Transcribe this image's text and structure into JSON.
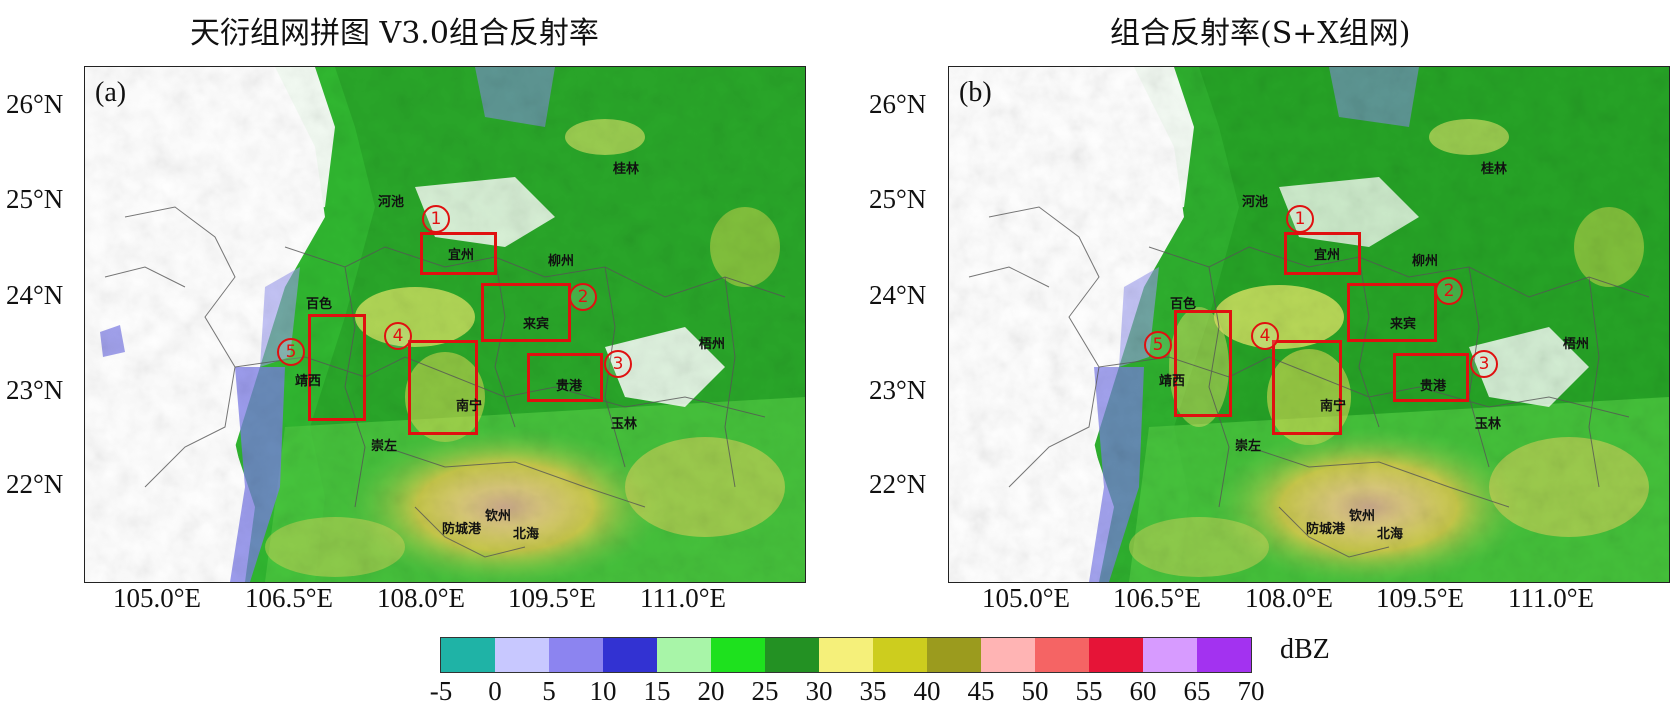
{
  "panels": [
    {
      "id": "a",
      "title": "天衍组网拼图 V3.0组合反射率",
      "label": "(a)",
      "lat_ticks": [
        "26°N",
        "25°N",
        "24°N",
        "23°N",
        "22°N"
      ],
      "lon_ticks": [
        "105.0°E",
        "106.5°E",
        "108.0°E",
        "109.5°E",
        "111.0°E"
      ],
      "cities": [
        "桂林",
        "河池",
        "宜州",
        "柳州",
        "百色",
        "来宾",
        "梧州",
        "靖西",
        "南宁",
        "贵港",
        "玉林",
        "崇左",
        "钦州",
        "防城港",
        "北海"
      ],
      "box_labels": [
        "1",
        "2",
        "3",
        "4",
        "5"
      ]
    },
    {
      "id": "b",
      "title": "组合反射率(S+X组网)",
      "label": "(b)",
      "lat_ticks": [
        "26°N",
        "25°N",
        "24°N",
        "23°N",
        "22°N"
      ],
      "lon_ticks": [
        "105.0°E",
        "106.5°E",
        "108.0°E",
        "109.5°E",
        "111.0°E"
      ],
      "cities": [
        "桂林",
        "河池",
        "宜州",
        "柳州",
        "百色",
        "来宾",
        "梧州",
        "靖西",
        "南宁",
        "贵港",
        "玉林",
        "崇左",
        "钦州",
        "防城港",
        "北海"
      ],
      "box_labels": [
        "1",
        "2",
        "3",
        "4",
        "5"
      ]
    }
  ],
  "colorbar": {
    "unit": "dBZ",
    "ticks": [
      "-5",
      "0",
      "5",
      "10",
      "15",
      "20",
      "25",
      "30",
      "35",
      "40",
      "45",
      "50",
      "55",
      "60",
      "65",
      "70"
    ],
    "colors": [
      "#1fb3a6",
      "#c8c8ff",
      "#8c84f0",
      "#3232d2",
      "#a8f5a8",
      "#1ee11e",
      "#239123",
      "#f5f07a",
      "#cdcd1e",
      "#9b9b1e",
      "#ffb4b4",
      "#f56464",
      "#e61437",
      "#d79bff",
      "#a332f0"
    ]
  }
}
